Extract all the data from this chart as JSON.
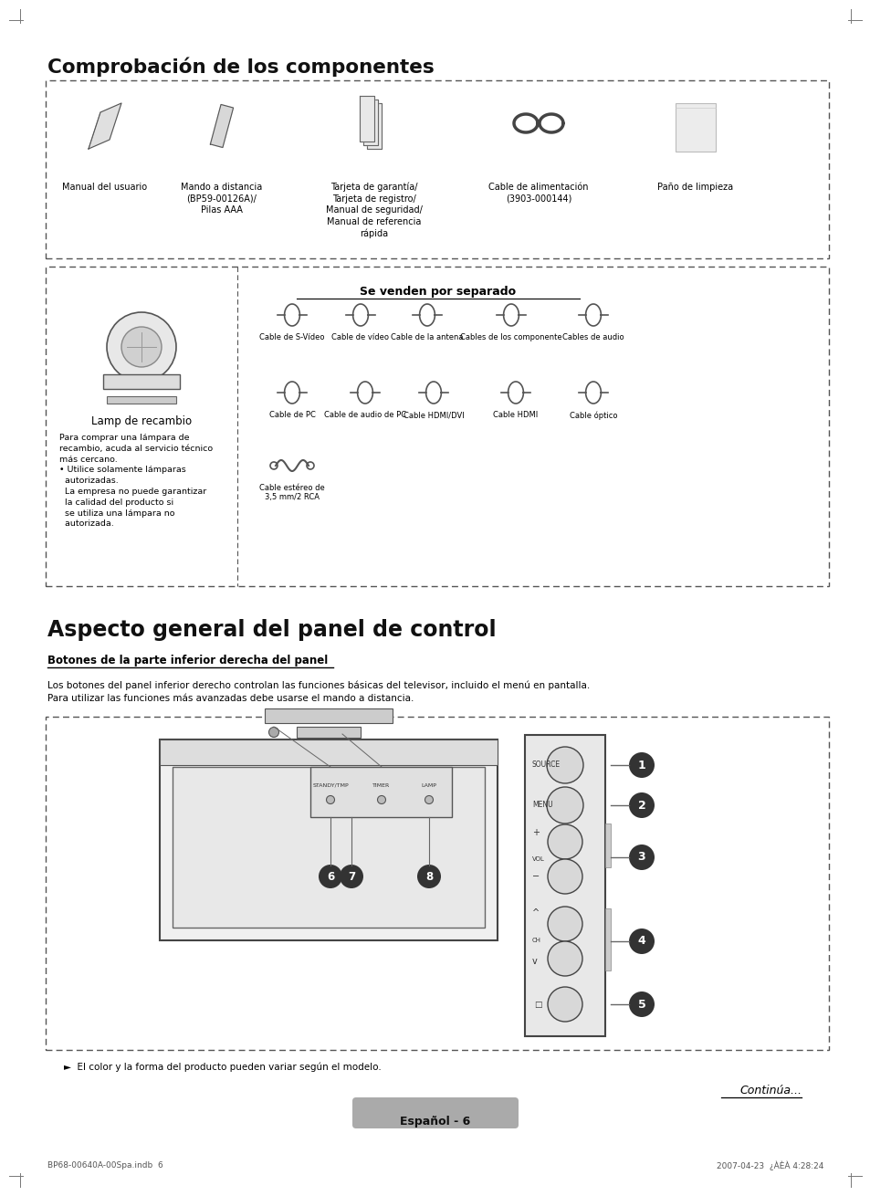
{
  "page_bg": "#ffffff",
  "title1": "Comprobación de los componentes",
  "title2": "Aspecto general del panel de control",
  "subtitle2": "Botones de la parte inferior derecha del panel",
  "body_text": "Los botones del panel inferior derecho controlan las funciones básicas del televisor, incluido el menú en pantalla.\nPara utilizar las funciones más avanzadas debe usarse el mando a distancia.",
  "section1_labels": [
    "Manual del usuario",
    "Mando a distancia\n(BP59-00126A)/\nPilas AAA",
    "Tarjeta de garantía/\nTarjeta de registro/\nManual de seguridad/\nManual de referencia\nrápida",
    "Cable de alimentación\n(3903-000144)",
    "Paño de limpieza"
  ],
  "sold_separately_title": "Se venden por separado",
  "lamp_label": "Lamp de recambio",
  "lamp_text": "Para comprar una lámpara de\nrecambio, acuda al servicio técnico\nmás cercano.\n• Utilice solamente lámparas\n  autorizadas.\n  La empresa no puede garantizar\n  la calidad del producto si\n  se utiliza una lámpara no\n  autorizada.",
  "sep_row1": [
    "Cable de S-Vídeo",
    "Cable de vídeo",
    "Cable de la antena",
    "Cables de los componente",
    "Cables de audio"
  ],
  "sep_row2": [
    "Cable de PC",
    "Cable de audio de PC",
    "Cable HDMI/DVI",
    "Cable HDMI",
    "Cable óptico"
  ],
  "sep_row3": [
    "Cable estéreo de\n3,5 mm/2 RCA"
  ],
  "btn_labels": [
    "SOURCE",
    "MENU",
    "+\nVOL\n−",
    "^\nCH\nv",
    "□"
  ],
  "callout_nums_right": [
    "1",
    "2",
    "3",
    "4",
    "5"
  ],
  "callout_nums_bottom": [
    "6",
    "7",
    "8"
  ],
  "indicator_labels": [
    "STANDY/TMP",
    "TIMER",
    "LAMP"
  ],
  "note_text": "►  El color y la forma del producto pueden variar según el modelo.",
  "continua_text": "Continúa...",
  "page_label": "Español - 6",
  "footer_left": "BP68-00640A-00Spa.indb  6",
  "footer_right": "2007-04-23  ¿ÀÈÀ 4:28:24"
}
